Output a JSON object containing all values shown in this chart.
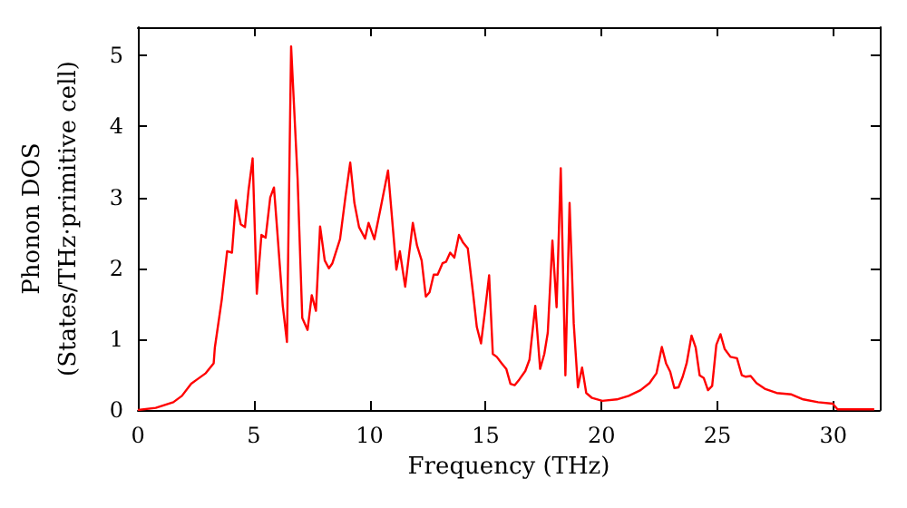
{
  "chart_data": {
    "type": "line",
    "xlabel": "Frequency (THz)",
    "ylabel": "Phonon DOS\n(States/THz·primitive cell)",
    "xlim": [
      0,
      32
    ],
    "ylim": [
      0,
      5.4
    ],
    "xticks": [
      0,
      5,
      10,
      15,
      20,
      25,
      30
    ],
    "yticks": [
      0,
      1,
      2,
      3,
      4,
      5
    ],
    "grid": false,
    "marker": "none",
    "line_style": "solid",
    "series": [
      {
        "color": "#ff0000",
        "x": [
          0,
          0.77,
          1.53,
          1.9,
          2.3,
          2.55,
          2.93,
          3.27,
          3.32,
          3.62,
          3.85,
          4.06,
          4.23,
          4.44,
          4.62,
          4.77,
          4.95,
          5.13,
          5.33,
          5.51,
          5.71,
          5.87,
          6.0,
          6.25,
          6.43,
          6.61,
          6.89,
          7.09,
          7.32,
          7.5,
          7.68,
          7.86,
          8.06,
          8.24,
          8.39,
          8.72,
          8.95,
          9.16,
          9.34,
          9.54,
          9.8,
          9.95,
          10.2,
          10.46,
          10.79,
          11.15,
          11.3,
          11.53,
          11.86,
          12.04,
          12.24,
          12.42,
          12.58,
          12.76,
          12.93,
          13.14,
          13.29,
          13.47,
          13.65,
          13.85,
          14.03,
          14.23,
          14.46,
          14.62,
          14.8,
          14.97,
          15.15,
          15.31,
          15.48,
          15.69,
          15.89,
          16.07,
          16.25,
          16.45,
          16.71,
          16.89,
          17.14,
          17.35,
          17.53,
          17.68,
          17.88,
          18.06,
          18.24,
          18.44,
          18.62,
          18.8,
          18.98,
          19.16,
          19.34,
          19.59,
          20.03,
          20.66,
          21.17,
          21.68,
          22.07,
          22.37,
          22.6,
          22.78,
          22.96,
          23.14,
          23.32,
          23.5,
          23.67,
          23.88,
          24.06,
          24.23,
          24.41,
          24.59,
          24.77,
          24.95,
          25.13,
          25.31,
          25.56,
          25.84,
          26.05,
          26.22,
          26.43,
          26.68,
          27.04,
          27.55,
          28.19,
          28.7,
          29.34,
          29.97,
          30.18,
          31.76
        ],
        "values": [
          0,
          0.03,
          0.11,
          0.2,
          0.37,
          0.43,
          0.52,
          0.66,
          0.88,
          1.56,
          2.24,
          2.22,
          2.96,
          2.62,
          2.58,
          3.09,
          3.55,
          1.64,
          2.47,
          2.43,
          3.0,
          3.14,
          2.58,
          1.47,
          0.96,
          5.13,
          3.26,
          1.3,
          1.13,
          1.62,
          1.4,
          2.59,
          2.11,
          2.0,
          2.07,
          2.41,
          3.0,
          3.49,
          2.92,
          2.58,
          2.42,
          2.64,
          2.41,
          2.83,
          3.38,
          1.98,
          2.24,
          1.74,
          2.64,
          2.32,
          2.11,
          1.6,
          1.66,
          1.91,
          1.91,
          2.07,
          2.09,
          2.22,
          2.15,
          2.47,
          2.36,
          2.28,
          1.64,
          1.17,
          0.94,
          1.39,
          1.9,
          0.79,
          0.75,
          0.66,
          0.58,
          0.37,
          0.35,
          0.43,
          0.55,
          0.71,
          1.47,
          0.58,
          0.79,
          1.09,
          2.39,
          1.45,
          3.41,
          0.49,
          2.92,
          1.22,
          0.32,
          0.6,
          0.24,
          0.17,
          0.13,
          0.15,
          0.2,
          0.28,
          0.38,
          0.52,
          0.89,
          0.66,
          0.54,
          0.31,
          0.32,
          0.47,
          0.66,
          1.05,
          0.88,
          0.49,
          0.45,
          0.28,
          0.34,
          0.92,
          1.07,
          0.86,
          0.75,
          0.73,
          0.49,
          0.47,
          0.48,
          0.38,
          0.3,
          0.24,
          0.22,
          0.15,
          0.11,
          0.09,
          0.01,
          0.01
        ]
      }
    ]
  }
}
